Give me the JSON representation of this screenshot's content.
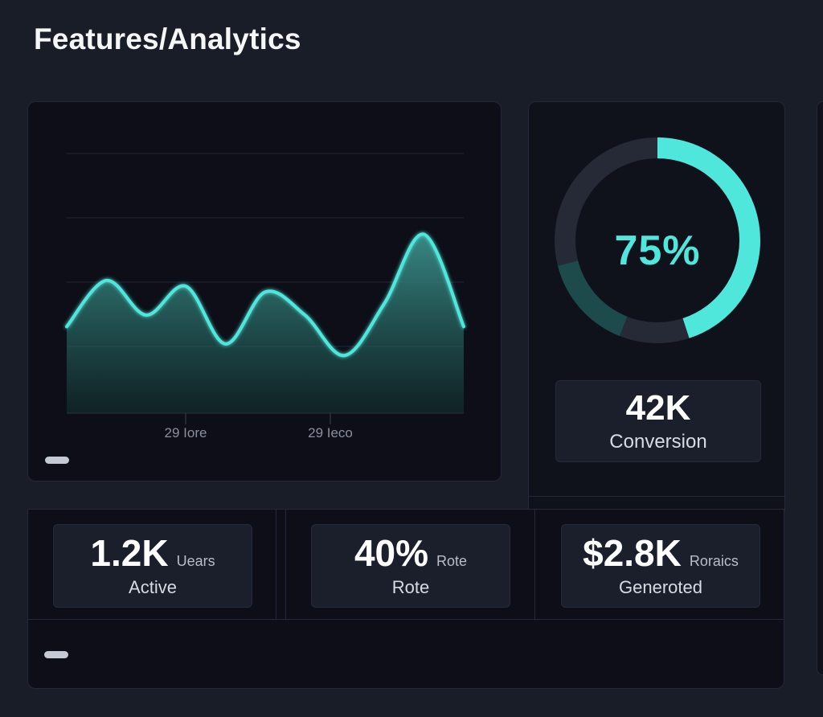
{
  "header": {
    "title": "Features/Analytics"
  },
  "chart_data": {
    "type": "area",
    "x_tick_labels": [
      "29 Iore",
      "29 Ieco"
    ],
    "values": [
      50,
      58,
      52,
      57,
      47,
      56,
      52,
      45,
      54,
      66,
      50
    ],
    "ylim": [
      35,
      80
    ],
    "grid": "horizontal",
    "color": "#4fe6dc"
  },
  "gauge": {
    "value": 0.75,
    "label": "75%",
    "color": "#4fe6dc"
  },
  "conversion": {
    "value": "42K",
    "label": "Conversion"
  },
  "stats": [
    {
      "value": "1.2K",
      "unit": "Uears",
      "label": "Active"
    },
    {
      "value": "40%",
      "unit": "Rote",
      "label": "Rote"
    },
    {
      "value": "$2.8K",
      "unit": "Roraics",
      "label": "Generoted"
    }
  ]
}
